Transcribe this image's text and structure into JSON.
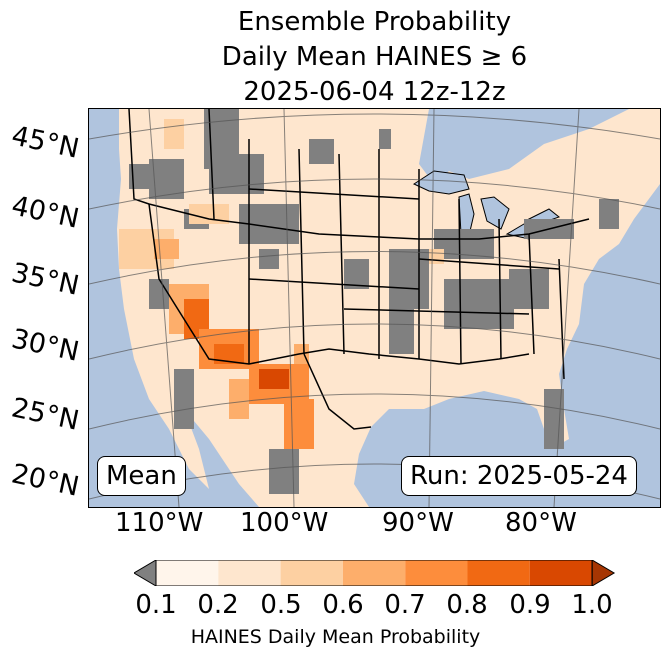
{
  "title": {
    "line1": "Ensemble Probability",
    "line2": "Daily Mean HAINES ≥ 6",
    "line3": "2025-06-04 12z-12z"
  },
  "latitude_labels": [
    "45°N",
    "40°N",
    "35°N",
    "30°N",
    "25°N",
    "20°N"
  ],
  "longitude_labels": [
    "110°W",
    "100°W",
    "90°W",
    "80°W"
  ],
  "boxes": {
    "left": "Mean",
    "right": "Run: 2025-05-24"
  },
  "colorbar": {
    "ticks": [
      "0.1",
      "0.2",
      "0.5",
      "0.6",
      "0.7",
      "0.8",
      "0.9",
      "1.0"
    ],
    "colors": [
      "#fff5eb",
      "#fee6ce",
      "#fdd0a2",
      "#fdae6b",
      "#fd8d3c",
      "#f16913",
      "#d94801",
      "#a63603"
    ],
    "under_color": "#808080",
    "label": "HAINES Daily Mean Probability"
  },
  "colors": {
    "ocean": "#b0c4de",
    "land": "#fee6ce",
    "below_threshold": "#808080"
  }
}
